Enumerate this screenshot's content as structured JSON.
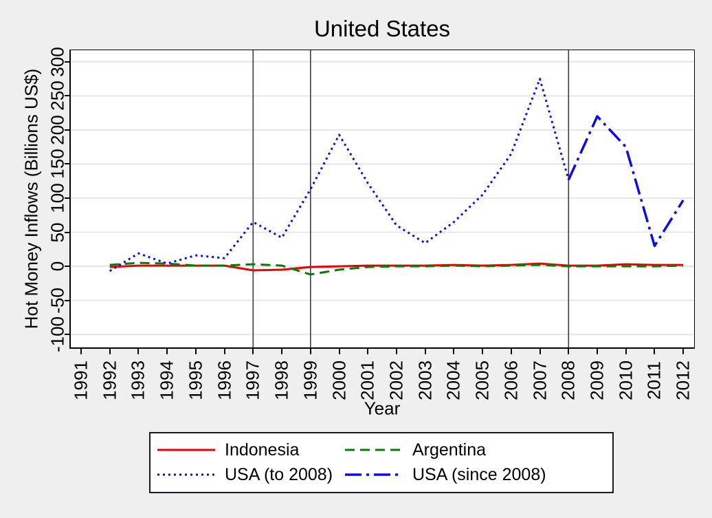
{
  "chart_data": {
    "type": "line",
    "title": "United States",
    "xlabel": "Year",
    "ylabel": "Hot Money Inflows (Billions US$)",
    "x_ticks": [
      1991,
      1992,
      1993,
      1994,
      1995,
      1996,
      1997,
      1998,
      1999,
      2000,
      2001,
      2002,
      2003,
      2004,
      2005,
      2006,
      2007,
      2008,
      2009,
      2010,
      2011,
      2012
    ],
    "y_ticks": [
      -100,
      -50,
      0,
      50,
      100,
      150,
      200,
      250,
      300
    ],
    "xlim": [
      1990.64,
      2012.38
    ],
    "ylim": [
      -119,
      317
    ],
    "grid": true,
    "legend_position": "bottom-center",
    "ref_lines_x": [
      1997,
      1999,
      2008
    ],
    "colors": {
      "page_bg": "#efefef",
      "plot_bg": "#ffffff",
      "grid": "#e6e6e6",
      "ref_line": "#3c3c3c",
      "axis": "#000000",
      "indonesia": "#f00000",
      "argentina": "#008000",
      "usa": "#0b0bee"
    },
    "series": [
      {
        "name": "Indonesia",
        "color": "#f00000",
        "dash": "solid",
        "width": 3,
        "x": [
          1992,
          1993,
          1994,
          1995,
          1996,
          1997,
          1998,
          1999,
          2000,
          2001,
          2002,
          2003,
          2004,
          2005,
          2006,
          2007,
          2008,
          2009,
          2010,
          2011,
          2012
        ],
        "values": [
          -1,
          1,
          1,
          1,
          1,
          -6,
          -5,
          -1,
          0,
          1,
          1,
          1,
          2,
          1,
          2,
          4,
          1,
          1,
          3,
          2,
          2
        ]
      },
      {
        "name": "Argentina",
        "color": "#008000",
        "dash": "dashed",
        "width": 3,
        "x": [
          1992,
          1993,
          1994,
          1995,
          1996,
          1997,
          1998,
          1999,
          2000,
          2001,
          2002,
          2003,
          2004,
          2005,
          2006,
          2007,
          2008,
          2009,
          2010,
          2011,
          2012
        ],
        "values": [
          2,
          5,
          4,
          1,
          1,
          3,
          1,
          -12,
          -5,
          -1,
          0,
          0,
          1,
          0,
          1,
          2,
          0,
          0,
          0,
          0,
          1
        ]
      },
      {
        "name": "USA (to 2008)",
        "color": "#0b0bee",
        "dash": "dotted",
        "width": 3,
        "x": [
          1992,
          1993,
          1994,
          1995,
          1996,
          1997,
          1998,
          1999,
          2000,
          2001,
          2002,
          2003,
          2004,
          2005,
          2006,
          2007,
          2008
        ],
        "values": [
          -7,
          19,
          4,
          16,
          12,
          65,
          42,
          113,
          193,
          122,
          60,
          34,
          65,
          105,
          165,
          275,
          127
        ]
      },
      {
        "name": "USA (since 2008)",
        "color": "#0b0bee",
        "dash": "dashdot",
        "width": 3.5,
        "x": [
          2008,
          2009,
          2010,
          2011,
          2012
        ],
        "values": [
          127,
          220,
          175,
          30,
          97
        ]
      }
    ]
  }
}
